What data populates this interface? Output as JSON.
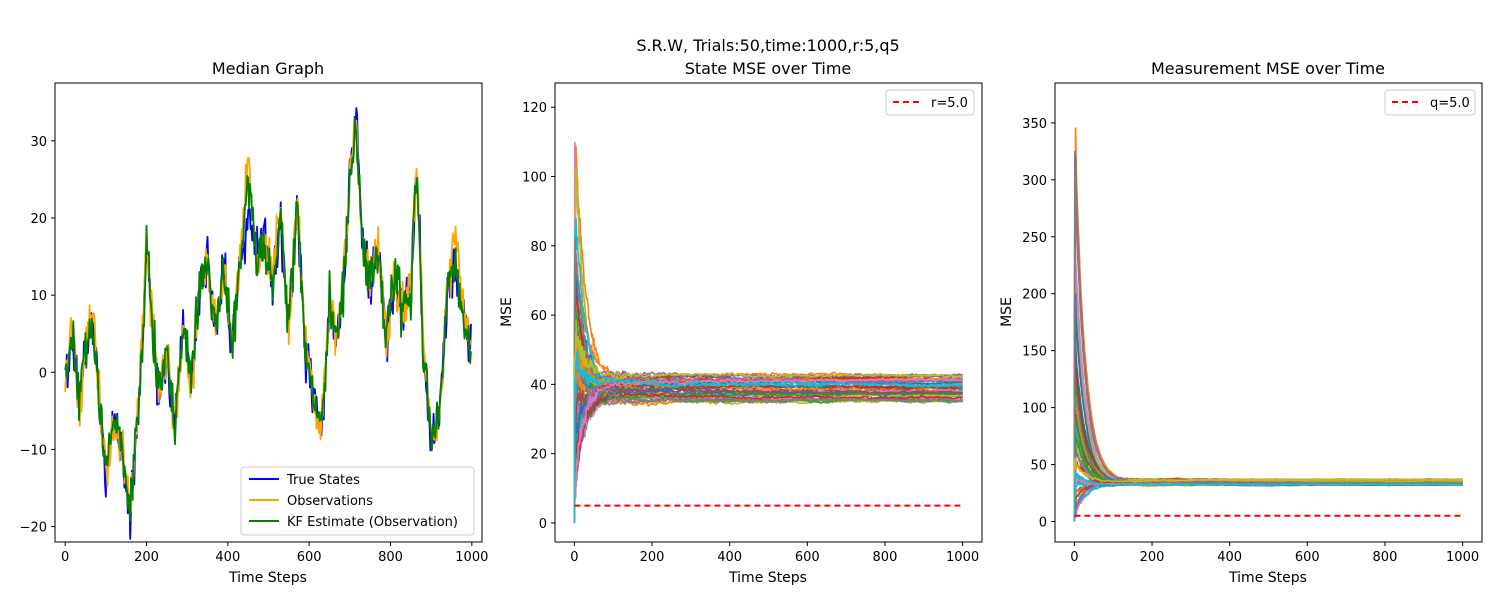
{
  "suptitle": "S.R.W, Trials:50,time:1000,r:5,q5",
  "chart_data": [
    {
      "type": "line",
      "title": "Median Graph",
      "xlabel": "Time Steps",
      "ylabel": "",
      "xlim": [
        -25,
        1025
      ],
      "ylim": [
        -22,
        37.5
      ],
      "xticks": [
        0,
        200,
        400,
        600,
        800,
        1000
      ],
      "yticks": [
        -20,
        -10,
        0,
        10,
        20,
        30
      ],
      "legend": {
        "placement": "lower-right"
      },
      "x_range": [
        0,
        999
      ],
      "series": [
        {
          "name": "True States",
          "color": "#0000ff",
          "keypoints": [
            [
              0,
              -1
            ],
            [
              20,
              5
            ],
            [
              35,
              -5
            ],
            [
              50,
              3
            ],
            [
              70,
              7
            ],
            [
              90,
              -8
            ],
            [
              100,
              -14
            ],
            [
              120,
              -5
            ],
            [
              140,
              -11
            ],
            [
              160,
              -19
            ],
            [
              175,
              -9
            ],
            [
              190,
              4
            ],
            [
              200,
              17
            ],
            [
              215,
              7
            ],
            [
              230,
              -4
            ],
            [
              250,
              2
            ],
            [
              270,
              -6
            ],
            [
              290,
              6
            ],
            [
              310,
              -1
            ],
            [
              330,
              10
            ],
            [
              350,
              15
            ],
            [
              370,
              5
            ],
            [
              390,
              15
            ],
            [
              410,
              3
            ],
            [
              430,
              14
            ],
            [
              450,
              20
            ],
            [
              470,
              16
            ],
            [
              490,
              18
            ],
            [
              510,
              11
            ],
            [
              530,
              20
            ],
            [
              550,
              6
            ],
            [
              570,
              22
            ],
            [
              590,
              3
            ],
            [
              610,
              -3
            ],
            [
              630,
              -8
            ],
            [
              650,
              10
            ],
            [
              670,
              4
            ],
            [
              690,
              15
            ],
            [
              700,
              26
            ],
            [
              715,
              34
            ],
            [
              730,
              18
            ],
            [
              750,
              11
            ],
            [
              770,
              17
            ],
            [
              790,
              4
            ],
            [
              810,
              13
            ],
            [
              830,
              8
            ],
            [
              850,
              12
            ],
            [
              865,
              27
            ],
            [
              880,
              4
            ],
            [
              900,
              -9
            ],
            [
              920,
              -6
            ],
            [
              940,
              10
            ],
            [
              960,
              14
            ],
            [
              980,
              7
            ],
            [
              999,
              3
            ]
          ]
        },
        {
          "name": "Observations",
          "color": "#ffa500",
          "keypoints": [
            [
              0,
              -2
            ],
            [
              20,
              6
            ],
            [
              35,
              -4
            ],
            [
              50,
              4
            ],
            [
              70,
              6
            ],
            [
              90,
              -7
            ],
            [
              100,
              -13
            ],
            [
              120,
              -6
            ],
            [
              140,
              -10
            ],
            [
              160,
              -18
            ],
            [
              175,
              -8
            ],
            [
              190,
              5
            ],
            [
              200,
              18
            ],
            [
              215,
              6
            ],
            [
              230,
              -3
            ],
            [
              250,
              3
            ],
            [
              270,
              -7
            ],
            [
              290,
              7
            ],
            [
              310,
              -2
            ],
            [
              330,
              11
            ],
            [
              350,
              14
            ],
            [
              370,
              6
            ],
            [
              390,
              14
            ],
            [
              410,
              4
            ],
            [
              430,
              15
            ],
            [
              450,
              29
            ],
            [
              470,
              15
            ],
            [
              490,
              17
            ],
            [
              510,
              12
            ],
            [
              530,
              21
            ],
            [
              550,
              5
            ],
            [
              570,
              23
            ],
            [
              590,
              4
            ],
            [
              610,
              -4
            ],
            [
              630,
              -7
            ],
            [
              650,
              9
            ],
            [
              670,
              5
            ],
            [
              690,
              16
            ],
            [
              700,
              25
            ],
            [
              715,
              33
            ],
            [
              730,
              17
            ],
            [
              750,
              12
            ],
            [
              770,
              16
            ],
            [
              790,
              5
            ],
            [
              810,
              12
            ],
            [
              830,
              9
            ],
            [
              850,
              11
            ],
            [
              865,
              26
            ],
            [
              880,
              5
            ],
            [
              900,
              -8
            ],
            [
              920,
              -7
            ],
            [
              940,
              11
            ],
            [
              960,
              18
            ],
            [
              980,
              8
            ],
            [
              999,
              2
            ]
          ]
        },
        {
          "name": "KF Estimate (Observation)",
          "color": "#008000",
          "keypoints": [
            [
              0,
              -1
            ],
            [
              20,
              5
            ],
            [
              35,
              -4
            ],
            [
              50,
              3
            ],
            [
              70,
              6
            ],
            [
              90,
              -7
            ],
            [
              100,
              -13
            ],
            [
              120,
              -5
            ],
            [
              140,
              -10
            ],
            [
              160,
              -18
            ],
            [
              175,
              -8
            ],
            [
              190,
              4
            ],
            [
              200,
              17
            ],
            [
              215,
              6
            ],
            [
              230,
              -3
            ],
            [
              250,
              2
            ],
            [
              270,
              -6
            ],
            [
              290,
              6
            ],
            [
              310,
              -1
            ],
            [
              330,
              10
            ],
            [
              350,
              14
            ],
            [
              370,
              5
            ],
            [
              390,
              14
            ],
            [
              410,
              3
            ],
            [
              430,
              14
            ],
            [
              450,
              26
            ],
            [
              470,
              15
            ],
            [
              490,
              17
            ],
            [
              510,
              11
            ],
            [
              530,
              20
            ],
            [
              550,
              6
            ],
            [
              570,
              22
            ],
            [
              590,
              3
            ],
            [
              610,
              -3
            ],
            [
              630,
              -7
            ],
            [
              650,
              9
            ],
            [
              670,
              4
            ],
            [
              690,
              15
            ],
            [
              700,
              25
            ],
            [
              715,
              32
            ],
            [
              730,
              17
            ],
            [
              750,
              11
            ],
            [
              770,
              16
            ],
            [
              790,
              4
            ],
            [
              810,
              12
            ],
            [
              830,
              8
            ],
            [
              850,
              11
            ],
            [
              865,
              27
            ],
            [
              880,
              4
            ],
            [
              900,
              -8
            ],
            [
              920,
              -6
            ],
            [
              940,
              10
            ],
            [
              960,
              14
            ],
            [
              980,
              7
            ],
            [
              999,
              3
            ]
          ]
        }
      ]
    },
    {
      "type": "line",
      "title": "State MSE over Time",
      "xlabel": "Time Steps",
      "ylabel": "MSE",
      "xlim": [
        -50,
        1050
      ],
      "ylim": [
        -5.5,
        127
      ],
      "xticks": [
        0,
        200,
        400,
        600,
        800,
        1000
      ],
      "yticks": [
        0,
        20,
        40,
        60,
        80,
        100,
        120
      ],
      "legend": {
        "placement": "top-right"
      },
      "trials": 50,
      "x_range": [
        0,
        1000
      ],
      "trial_start_range": [
        10,
        120
      ],
      "trial_final_range": [
        35,
        43
      ],
      "reference": {
        "name": "r=5.0",
        "value": 5,
        "color": "#ff0000",
        "style": "dashed"
      },
      "palette": [
        "#1f77b4",
        "#ff7f0e",
        "#2ca02c",
        "#d62728",
        "#9467bd",
        "#8c564b",
        "#e377c2",
        "#7f7f7f",
        "#bcbd22",
        "#17becf"
      ]
    },
    {
      "type": "line",
      "title": "Measurement MSE over Time",
      "xlabel": "Time Steps",
      "ylabel": "MSE",
      "xlim": [
        -50,
        1050
      ],
      "ylim": [
        -18,
        385
      ],
      "xticks": [
        0,
        200,
        400,
        600,
        800,
        1000
      ],
      "yticks": [
        0,
        50,
        100,
        150,
        200,
        250,
        300,
        350
      ],
      "legend": {
        "placement": "top-right"
      },
      "trials": 50,
      "x_range": [
        0,
        1000
      ],
      "trial_start_range": [
        5,
        367
      ],
      "trial_final_range": [
        32,
        37
      ],
      "reference": {
        "name": "q=5.0",
        "value": 5,
        "color": "#ff0000",
        "style": "dashed"
      },
      "palette": [
        "#1f77b4",
        "#ff7f0e",
        "#2ca02c",
        "#d62728",
        "#9467bd",
        "#8c564b",
        "#e377c2",
        "#7f7f7f",
        "#bcbd22",
        "#17becf"
      ]
    }
  ]
}
